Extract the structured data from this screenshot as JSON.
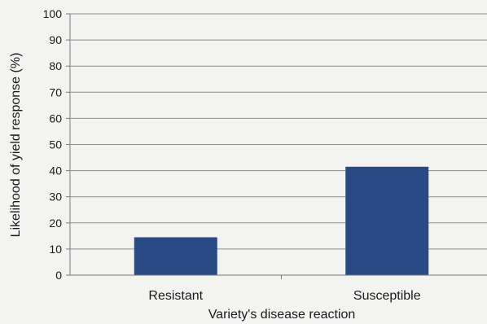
{
  "chart_data": {
    "type": "bar",
    "categories": [
      "Resistant",
      "Susceptible"
    ],
    "values": [
      14.5,
      41.5
    ],
    "title": "",
    "xlabel": "Variety's disease reaction",
    "ylabel": "Likelihood of yield response (%)",
    "ylim": [
      0,
      100
    ],
    "yticks": [
      "0",
      "10",
      "20",
      "30",
      "40",
      "50",
      "60",
      "70",
      "80",
      "90",
      "100"
    ],
    "grid": true,
    "legend": "none",
    "bar_color": "#2a4a86"
  }
}
